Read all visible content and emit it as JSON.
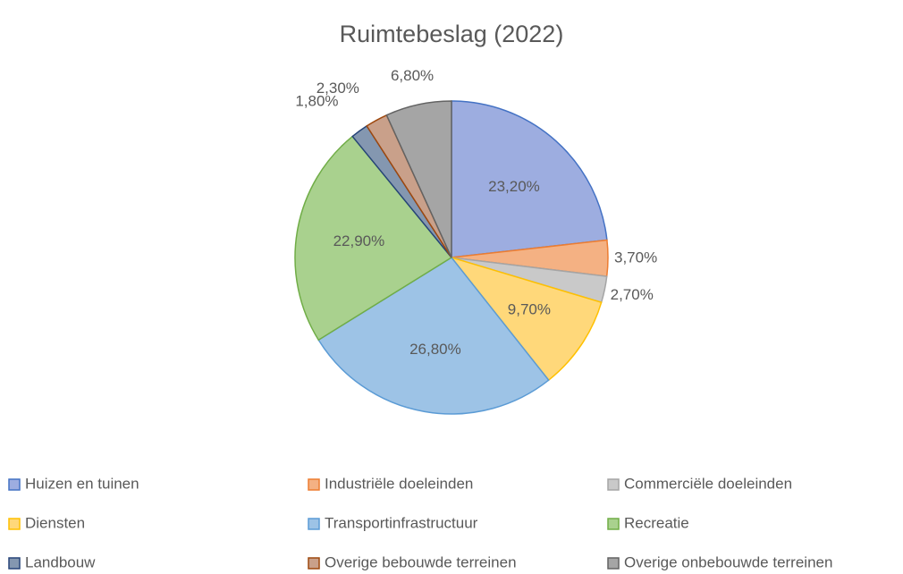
{
  "chart_data": {
    "type": "pie",
    "title": "Ruimtebeslag (2022)",
    "categories": [
      "Huizen en tuinen",
      "Industriële doeleinden",
      "Commerciële doeleinden",
      "Diensten",
      "Transportinfrastructuur",
      "Recreatie",
      "Landbouw",
      "Overige bebouwde terreinen",
      "Overige onbebouwde terreinen"
    ],
    "values": [
      23.2,
      3.7,
      2.7,
      9.7,
      26.8,
      22.9,
      1.8,
      2.3,
      6.8
    ],
    "value_labels": [
      "23,20%",
      "3,70%",
      "2,70%",
      "9,70%",
      "26,80%",
      "22,90%",
      "1,80%",
      "2,30%",
      "6,80%"
    ],
    "colors": [
      "#9dade0",
      "#f4b183",
      "#c9c9c9",
      "#ffd87a",
      "#9dc3e6",
      "#a9d18e",
      "#8497b0",
      "#c9a08a",
      "#a5a5a5"
    ],
    "edge_colors": [
      "#4472c4",
      "#ed7d31",
      "#a5a5a5",
      "#ffc000",
      "#5b9bd5",
      "#70ad47",
      "#264478",
      "#9e480e",
      "#636363"
    ],
    "legend": "bottom"
  }
}
